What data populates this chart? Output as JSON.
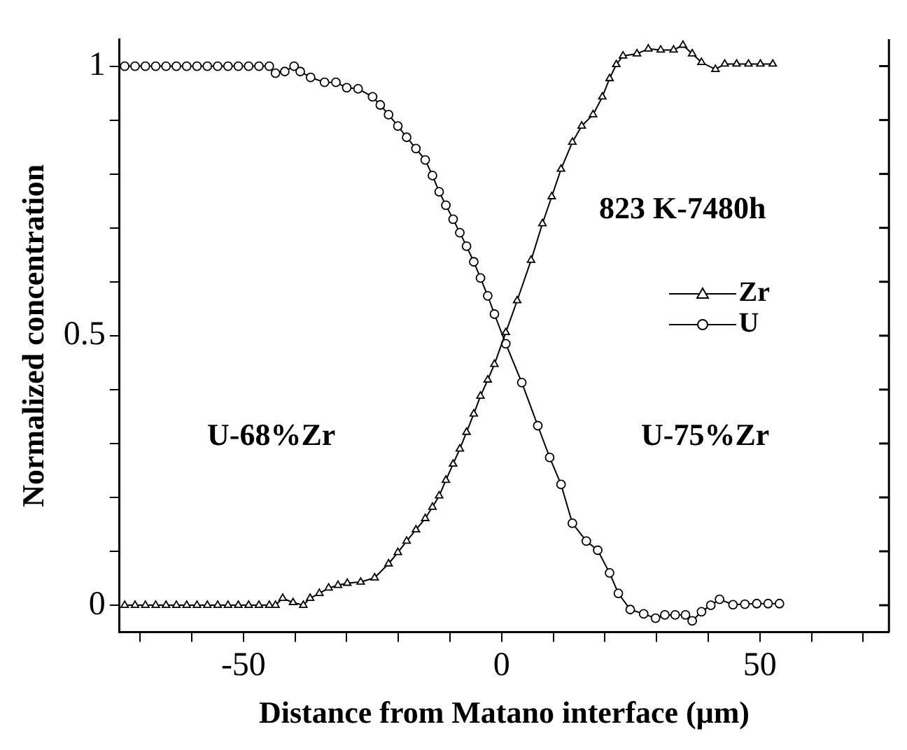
{
  "chart_data": {
    "type": "line",
    "xlabel": "Distance from Matano interface (μm)",
    "ylabel": "Normalized concentration",
    "annotations": [
      "823 K-7480h",
      "U-68%Zr",
      "U-75%Zr"
    ],
    "xlim": [
      -74,
      75
    ],
    "xticks": [
      {
        "value": -70,
        "label": null
      },
      {
        "value": -60,
        "label": null
      },
      -50,
      {
        "value": -40,
        "label": null
      },
      {
        "value": -30,
        "label": null
      },
      {
        "value": -20,
        "label": null
      },
      {
        "value": -10,
        "label": null
      },
      0,
      {
        "value": 10,
        "label": null
      },
      {
        "value": 20,
        "label": null
      },
      {
        "value": 30,
        "label": null
      },
      {
        "value": 40,
        "label": null
      },
      50,
      {
        "value": 60,
        "label": null
      },
      {
        "value": 70,
        "label": null
      }
    ],
    "ylim": [
      -0.05,
      1.05
    ],
    "yticks": [
      0,
      {
        "value": 0.1,
        "label": null
      },
      {
        "value": 0.2,
        "label": null
      },
      {
        "value": 0.3,
        "label": null
      },
      {
        "value": 0.4,
        "label": null
      },
      0.5,
      {
        "value": 0.6,
        "label": null
      },
      {
        "value": 0.7,
        "label": null
      },
      {
        "value": 0.8,
        "label": null
      },
      {
        "value": 0.9,
        "label": null
      },
      1
    ],
    "grid": false,
    "legend": "right",
    "line_style": "solid",
    "series": [
      {
        "name": "Zr",
        "color": "#000000",
        "marker": "triangle",
        "x": [
          -73,
          -71,
          -69,
          -67,
          -65,
          -63,
          -61,
          -59,
          -57,
          -55,
          -53,
          -51,
          -49,
          -47,
          -45,
          -43.8,
          -42.4,
          -40.4,
          -38.4,
          -37.1,
          -35.3,
          -33.5,
          -31.7,
          -29.9,
          -27.3,
          -24.6,
          -21.9,
          -20.1,
          -18.4,
          -16.6,
          -14.8,
          -13.4,
          -12.1,
          -10.8,
          -9.4,
          -8.1,
          -6.8,
          -5.4,
          -4.1,
          -2.7,
          -1.4,
          0.8,
          3.0,
          5.7,
          7.9,
          9.7,
          11.5,
          13.7,
          15.5,
          17.7,
          19.5,
          20.9,
          22.2,
          23.5,
          26.2,
          28.4,
          30.8,
          33.3,
          35.1,
          36.9,
          38.7,
          41.4,
          43.2,
          45.5,
          47.8,
          50.1,
          52.5
        ],
        "values": [
          0,
          0,
          0,
          0,
          0,
          0,
          0,
          0,
          0,
          0,
          0,
          0,
          0,
          0,
          0,
          0,
          0.013,
          0.005,
          0,
          0.013,
          0.022,
          0.032,
          0.037,
          0.041,
          0.043,
          0.051,
          0.077,
          0.098,
          0.119,
          0.14,
          0.161,
          0.182,
          0.203,
          0.232,
          0.262,
          0.29,
          0.321,
          0.355,
          0.388,
          0.418,
          0.447,
          0.506,
          0.565,
          0.64,
          0.708,
          0.758,
          0.809,
          0.859,
          0.889,
          0.91,
          0.943,
          0.977,
          1.003,
          1.019,
          1.023,
          1.032,
          1.03,
          1.03,
          1.039,
          1.023,
          1.007,
          0.994,
          1.004,
          1.004,
          1.004,
          1.004,
          1.004
        ]
      },
      {
        "name": "U",
        "color": "#000000",
        "marker": "circle",
        "x": [
          -73,
          -71,
          -69,
          -67,
          -65,
          -63,
          -61,
          -59,
          -57,
          -55,
          -53,
          -51,
          -49,
          -47,
          -45,
          -43.8,
          -42,
          -40.2,
          -39,
          -37,
          -34.3,
          -32.1,
          -30,
          -27.8,
          -25,
          -23.5,
          -21.9,
          -20.1,
          -18.4,
          -16.6,
          -14.8,
          -13.4,
          -12.1,
          -10.8,
          -9.4,
          -8.1,
          -6.8,
          -5.4,
          -4.1,
          -2.7,
          -1.4,
          0.8,
          3.9,
          7.0,
          9.3,
          11.5,
          13.7,
          16.4,
          18.6,
          20.9,
          22.6,
          24.9,
          27.5,
          29.8,
          31.6,
          33.6,
          35.6,
          36.9,
          38.7,
          40.5,
          42.2,
          44.8,
          47.1,
          49.4,
          51.6,
          53.8
        ],
        "values": [
          1,
          1,
          1,
          1,
          1,
          1,
          1,
          1,
          1,
          1,
          1,
          1,
          1,
          1,
          1,
          0.987,
          0.99,
          1.0,
          0.99,
          0.979,
          0.97,
          0.97,
          0.96,
          0.958,
          0.943,
          0.928,
          0.91,
          0.889,
          0.868,
          0.847,
          0.826,
          0.797,
          0.767,
          0.742,
          0.716,
          0.691,
          0.666,
          0.637,
          0.607,
          0.574,
          0.54,
          0.485,
          0.413,
          0.333,
          0.274,
          0.224,
          0.152,
          0.119,
          0.102,
          0.06,
          0.022,
          -0.008,
          -0.016,
          -0.024,
          -0.018,
          -0.018,
          -0.018,
          -0.029,
          -0.012,
          0.0,
          0.011,
          0.001,
          0.002,
          0.003,
          0.003,
          0.003
        ]
      }
    ]
  }
}
